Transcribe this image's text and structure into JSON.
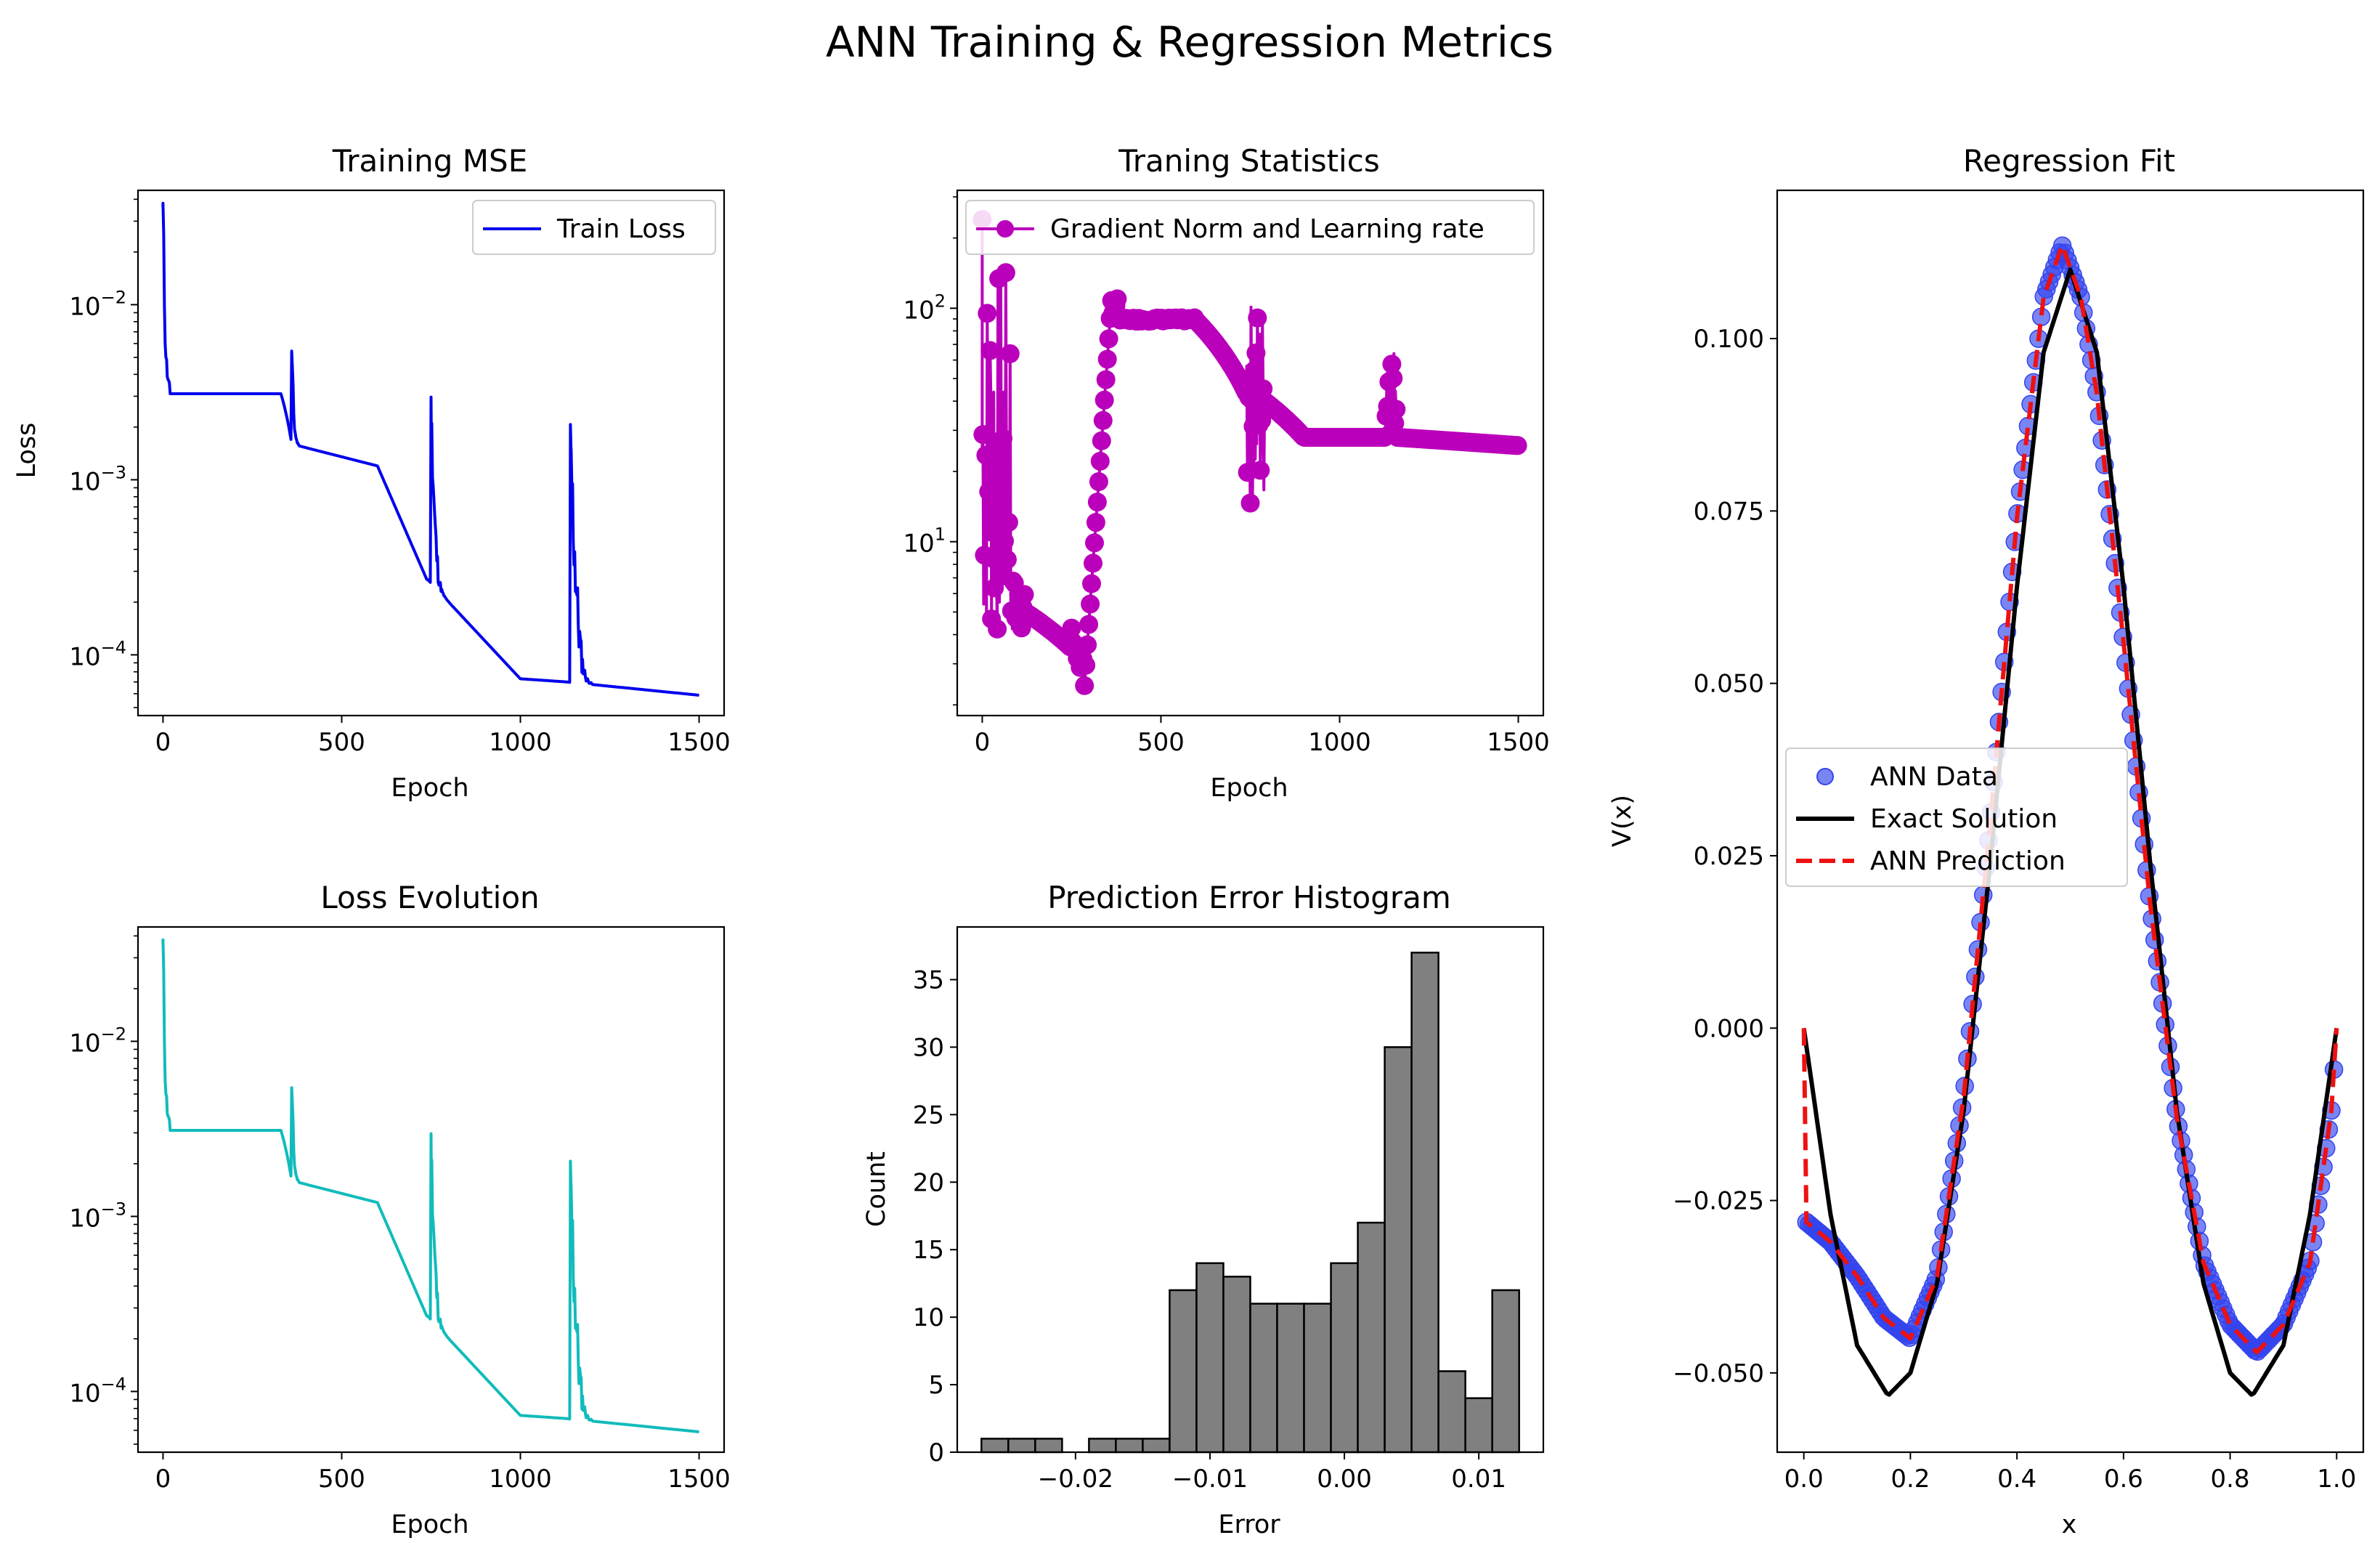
{
  "figure": {
    "suptitle": "ANN Training & Regression Metrics"
  },
  "colors": {
    "train_loss": "#0000ee",
    "loss_evolution": "#11bbbb",
    "grad_norm": "#bb00bb",
    "hist_fill": "#808080",
    "ann_data": "#3344ee",
    "exact": "#000000",
    "prediction": "#ee1111"
  },
  "chart_data": [
    {
      "id": "training_mse",
      "type": "line",
      "title": "Training MSE",
      "xlabel": "Epoch",
      "ylabel": "Loss",
      "yscale": "log",
      "xlim": [
        -70,
        1570
      ],
      "ylim": [
        4.5e-05,
        0.045
      ],
      "xticks": [
        0,
        500,
        1000,
        1500
      ],
      "yticks": [
        {
          "value": 0.0001,
          "label": "10",
          "exp": "−4"
        },
        {
          "value": 0.001,
          "label": "10",
          "exp": "−3"
        },
        {
          "value": 0.01,
          "label": "10",
          "exp": "−2"
        }
      ],
      "legend": {
        "position": "upper-right",
        "entries": [
          "Train Loss"
        ]
      },
      "series": [
        {
          "name": "Train Loss",
          "style": "line"
        }
      ]
    },
    {
      "id": "training_statistics",
      "type": "line",
      "title": "Traning Statistics",
      "xlabel": "Epoch",
      "ylabel": "",
      "yscale": "log",
      "xlim": [
        -70,
        1570
      ],
      "ylim": [
        1.8,
        320
      ],
      "xticks": [
        0,
        500,
        1000,
        1500
      ],
      "yticks": [
        {
          "value": 10,
          "label": "10",
          "exp": "1"
        },
        {
          "value": 100,
          "label": "10",
          "exp": "2"
        }
      ],
      "legend": {
        "position": "upper-right",
        "entries": [
          "Gradient Norm and Learning rate"
        ]
      },
      "series": [
        {
          "name": "Gradient Norm and Learning rate",
          "style": "line-markers"
        }
      ]
    },
    {
      "id": "loss_evolution",
      "type": "line",
      "title": "Loss Evolution",
      "xlabel": "Epoch",
      "ylabel": "",
      "yscale": "log",
      "xlim": [
        -70,
        1570
      ],
      "ylim": [
        4.5e-05,
        0.045
      ],
      "xticks": [
        0,
        500,
        1000,
        1500
      ],
      "yticks": [
        {
          "value": 0.0001,
          "label": "10",
          "exp": "−4"
        },
        {
          "value": 0.001,
          "label": "10",
          "exp": "−3"
        },
        {
          "value": 0.01,
          "label": "10",
          "exp": "−2"
        }
      ],
      "legend": null,
      "series": [
        {
          "style": "line"
        }
      ]
    },
    {
      "id": "error_histogram",
      "type": "bar",
      "title": "Prediction Error Histogram",
      "xlabel": "Error",
      "ylabel": "Count",
      "xlim": [
        -0.0288,
        0.0148
      ],
      "ylim": [
        0,
        38.9
      ],
      "xticks": [
        {
          "value": -0.02,
          "label": "−0.02"
        },
        {
          "value": -0.01,
          "label": "−0.01"
        },
        {
          "value": 0.0,
          "label": "0.00"
        },
        {
          "value": 0.01,
          "label": "0.01"
        }
      ],
      "yticks": [
        0,
        5,
        10,
        15,
        20,
        25,
        30,
        35
      ],
      "bin_start": -0.027,
      "bin_width": 0.002,
      "counts": [
        1,
        1,
        1,
        0,
        1,
        1,
        1,
        12,
        14,
        13,
        11,
        11,
        11,
        14,
        17,
        30,
        37,
        6,
        4,
        12
      ]
    },
    {
      "id": "regression_fit",
      "type": "line",
      "title": "Regression Fit",
      "xlabel": "x",
      "ylabel": "V(x)",
      "xlim": [
        -0.05,
        1.05
      ],
      "ylim": [
        -0.0615,
        0.1215
      ],
      "xticks": [
        {
          "value": 0.0,
          "label": "0.0"
        },
        {
          "value": 0.2,
          "label": "0.2"
        },
        {
          "value": 0.4,
          "label": "0.4"
        },
        {
          "value": 0.6,
          "label": "0.6"
        },
        {
          "value": 0.8,
          "label": "0.8"
        },
        {
          "value": 1.0,
          "label": "1.0"
        }
      ],
      "yticks": [
        {
          "value": -0.05,
          "label": "−0.050"
        },
        {
          "value": -0.025,
          "label": "−0.025"
        },
        {
          "value": 0.0,
          "label": "0.000"
        },
        {
          "value": 0.025,
          "label": "0.025"
        },
        {
          "value": 0.05,
          "label": "0.050"
        },
        {
          "value": 0.075,
          "label": "0.075"
        },
        {
          "value": 0.1,
          "label": "0.100"
        }
      ],
      "legend": {
        "position": "center-left",
        "entries": [
          "ANN Data",
          "Exact Solution",
          "ANN Prediction"
        ]
      },
      "series": [
        {
          "name": "ANN Data",
          "style": "scatter"
        },
        {
          "name": "Exact Solution",
          "style": "line"
        },
        {
          "name": "ANN Prediction",
          "style": "dashed"
        }
      ],
      "exact_points": [
        [
          0.0,
          0.0
        ],
        [
          0.05,
          -0.027
        ],
        [
          0.1,
          -0.046
        ],
        [
          0.158,
          -0.0533
        ],
        [
          0.2,
          -0.05
        ],
        [
          0.25,
          -0.037
        ],
        [
          0.3,
          -0.012
        ],
        [
          0.35,
          0.024
        ],
        [
          0.4,
          0.064
        ],
        [
          0.45,
          0.098
        ],
        [
          0.5,
          0.11
        ],
        [
          0.55,
          0.098
        ],
        [
          0.6,
          0.064
        ],
        [
          0.65,
          0.024
        ],
        [
          0.7,
          -0.012
        ],
        [
          0.75,
          -0.037
        ],
        [
          0.8,
          -0.05
        ],
        [
          0.842,
          -0.0533
        ],
        [
          0.9,
          -0.046
        ],
        [
          0.95,
          -0.027
        ],
        [
          1.0,
          0.0
        ]
      ],
      "prediction_points": [
        [
          0.0,
          0.0
        ],
        [
          0.003,
          -0.028
        ],
        [
          0.05,
          -0.031
        ],
        [
          0.1,
          -0.036
        ],
        [
          0.15,
          -0.042
        ],
        [
          0.2,
          -0.045
        ],
        [
          0.25,
          -0.036
        ],
        [
          0.3,
          -0.01
        ],
        [
          0.35,
          0.03
        ],
        [
          0.4,
          0.074
        ],
        [
          0.45,
          0.106
        ],
        [
          0.485,
          0.1135
        ],
        [
          0.52,
          0.106
        ],
        [
          0.55,
          0.092
        ],
        [
          0.6,
          0.056
        ],
        [
          0.65,
          0.018
        ],
        [
          0.7,
          -0.013
        ],
        [
          0.75,
          -0.034
        ],
        [
          0.8,
          -0.043
        ],
        [
          0.85,
          -0.047
        ],
        [
          0.9,
          -0.043
        ],
        [
          0.95,
          -0.034
        ],
        [
          0.99,
          -0.012
        ],
        [
          1.0,
          0.0
        ]
      ]
    }
  ]
}
